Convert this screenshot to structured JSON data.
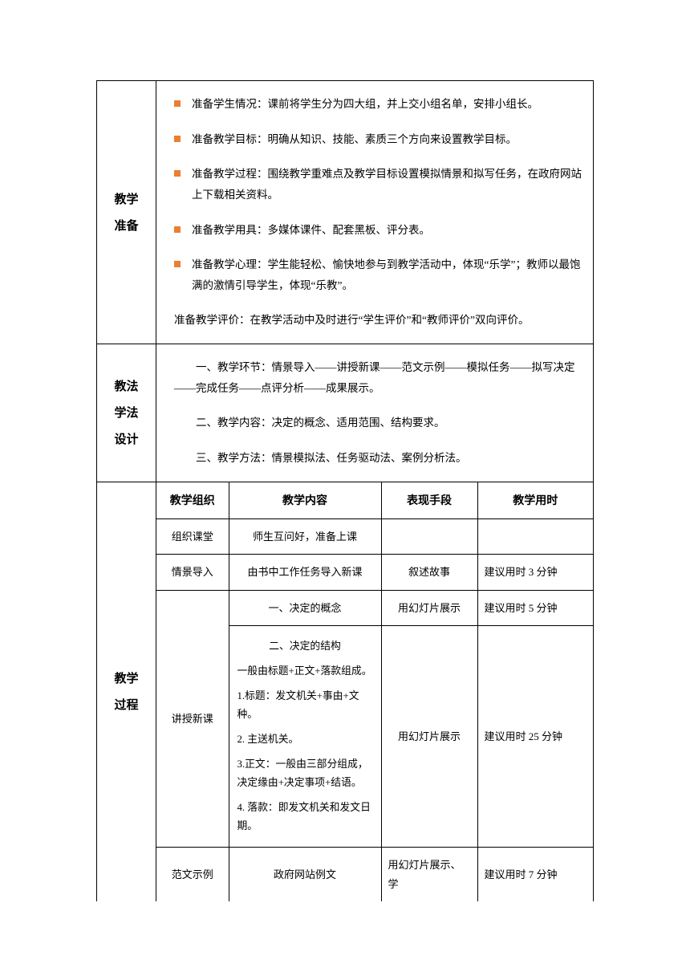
{
  "colors": {
    "bullet": "#ed7d31",
    "border": "#000000",
    "text": "#000000",
    "background": "#ffffff"
  },
  "typography": {
    "body_font": "SimSun",
    "heading_font": "SimHei",
    "body_size_pt": 10.5,
    "heading_size_pt": 12,
    "line_height": 1.9
  },
  "sections": {
    "prep": {
      "label_l1": "教学",
      "label_l2": "准备",
      "bullets": [
        "准备学生情况：课前将学生分为四大组，并上交小组名单，安排小组长。",
        "准备教学目标：明确从知识、技能、素质三个方向来设置教学目标。",
        "准备教学过程：围绕教学重难点及教学目标设置模拟情景和拟写任务，在政府网站上下载相关资料。",
        "准备教学用具：多媒体课件、配套黑板、评分表。",
        "准备教学心理：学生能轻松、愉快地参与到教学活动中，体现“乐学”；教师以最饱满的激情引导学生，体现“乐教”。"
      ],
      "tail": "准备教学评价：在教学活动中及时进行“学生评价”和“教师评价”双向评价。"
    },
    "method": {
      "label_l1": "教法",
      "label_l2": "学法",
      "label_l3": "设计",
      "paras": [
        "一、教学环节：情景导入——讲授新课——范文示例——模拟任务——拟写决定——完成任务——点评分析——成果展示。",
        "二、教学内容：决定的概念、适用范围、结构要求。",
        "三、教学方法：情景模拟法、任务驱动法、案例分析法。"
      ]
    },
    "process": {
      "label_l1": "教学",
      "label_l2": "过程",
      "headers": {
        "org": "教学组织",
        "content": "教学内容",
        "perf": "表现手段",
        "time": "教学用时"
      },
      "rows": {
        "r1": {
          "org": "组织课堂",
          "content": "师生互问好，准备上课",
          "perf": "",
          "time": ""
        },
        "r2": {
          "org": "情景导入",
          "content": "由书中工作任务导入新课",
          "perf": "叙述故事",
          "time": "建议用时 3 分钟"
        },
        "r3": {
          "org": "讲授新课",
          "content": "一、决定的概念",
          "perf": "用幻灯片展示",
          "time": "建议用时 5 分钟"
        },
        "r4": {
          "title": "二、决定的结构",
          "lines": [
            "一般由标题+正文+落款组成。",
            "1.标题：发文机关+事由+文种。",
            "2. 主送机关。",
            "3.正文：一般由三部分组成，决定缘由+决定事项+结语。",
            "4. 落款：即发文机关和发文日期。"
          ],
          "perf": "用幻灯片展示",
          "time": "建议用时 25 分钟"
        },
        "r5": {
          "org": "范文示例",
          "content": "政府网站例文",
          "perf": "用幻灯片展示、学",
          "time": "建议用时 7 分钟"
        }
      }
    }
  }
}
